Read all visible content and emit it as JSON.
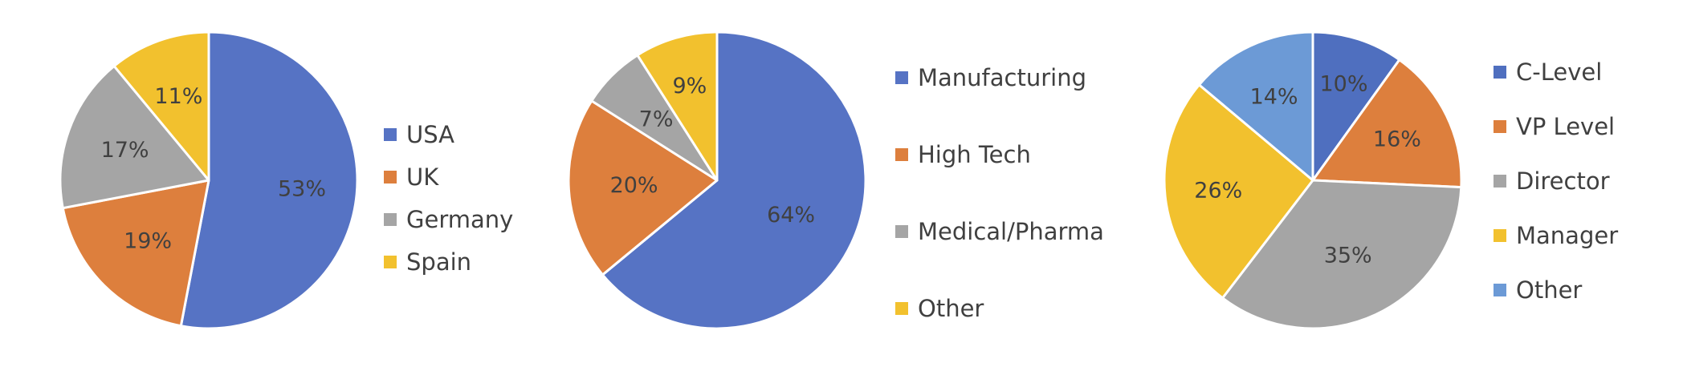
{
  "chart_data": [
    {
      "type": "pie",
      "categories": [
        "USA",
        "UK",
        "Germany",
        "Spain"
      ],
      "values": [
        53,
        19,
        17,
        11
      ],
      "value_labels": [
        "53%",
        "19%",
        "17%",
        "11%"
      ],
      "colors": [
        "#5673C4",
        "#DD7F3D",
        "#A5A5A5",
        "#F2C12E"
      ],
      "start_angle_deg": 0,
      "direction": "clockwise",
      "legend": "right"
    },
    {
      "type": "pie",
      "categories": [
        "Manufacturing",
        "High Tech",
        "Medical/Pharma",
        "Other"
      ],
      "values": [
        64,
        20,
        7,
        9
      ],
      "value_labels": [
        "64%",
        "20%",
        "7%",
        "9%"
      ],
      "colors": [
        "#5673C4",
        "#DD7F3D",
        "#A5A5A5",
        "#F2C12E"
      ],
      "start_angle_deg": 0,
      "direction": "clockwise",
      "legend": "right"
    },
    {
      "type": "pie",
      "categories": [
        "C-Level",
        "VP Level",
        "Director",
        "Manager",
        "Other"
      ],
      "values": [
        10,
        16,
        35,
        26,
        14
      ],
      "value_labels": [
        "10%",
        "16%",
        "35%",
        "26%",
        "14%"
      ],
      "colors": [
        "#4F6FBF",
        "#DD7F3D",
        "#A5A5A5",
        "#F2C12E",
        "#6C9AD6"
      ],
      "start_angle_deg": 0,
      "direction": "clockwise",
      "legend": "right"
    }
  ]
}
